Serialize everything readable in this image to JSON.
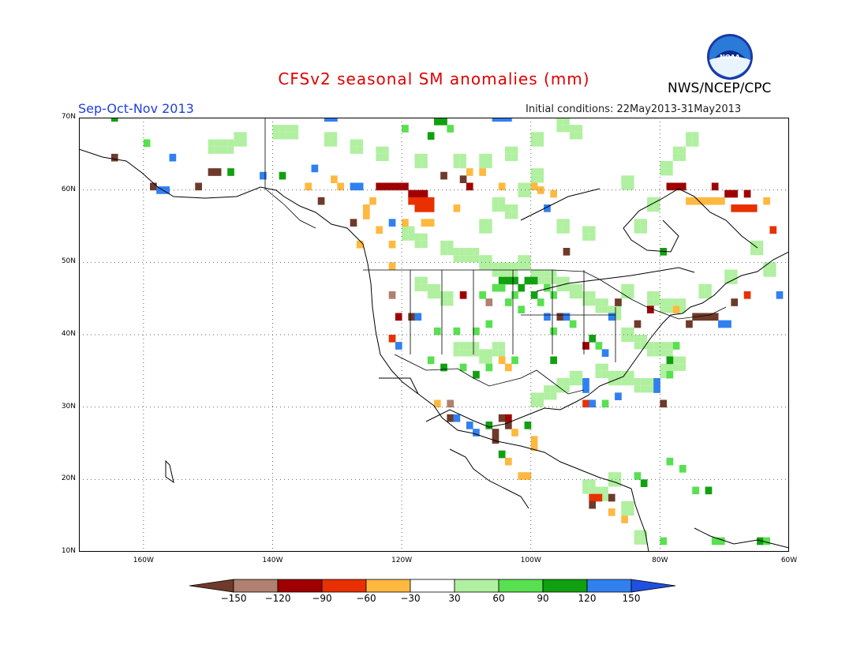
{
  "header": {
    "title": "CFSv2 seasonal SM anomalies (mm)",
    "season": "Sep-Oct-Nov 2013",
    "initial_conditions": "Initial conditions: 22May2013-31May2013",
    "agency": "NWS/NCEP/CPC",
    "logo_text": "NOAA"
  },
  "map": {
    "lat_range": [
      10,
      70
    ],
    "lon_range": [
      -170,
      -60
    ],
    "lat_ticks": [
      "10N",
      "20N",
      "30N",
      "40N",
      "50N",
      "60N",
      "70N"
    ],
    "lon_ticks": [
      "160W",
      "140W",
      "120W",
      "100W",
      "80W",
      "60W"
    ],
    "gridlines": "dotted"
  },
  "legend": {
    "labels": [
      "−150",
      "−120",
      "−90",
      "−60",
      "−30",
      "30",
      "60",
      "90",
      "120",
      "150"
    ],
    "colors": [
      "#6e3a2a",
      "#b08070",
      "#a00000",
      "#e83000",
      "#ffb840",
      "#ffffff",
      "#b0f0a0",
      "#58e050",
      "#10a010",
      "#3080f0",
      "#2050e0"
    ]
  },
  "anomaly_cells": [
    {
      "lon": -132,
      "lat": 69.5,
      "c": "#3080f0"
    },
    {
      "lon": -131,
      "lat": 69.5,
      "c": "#3080f0"
    },
    {
      "lon": -115,
      "lat": 69,
      "c": "#10a010"
    },
    {
      "lon": -114,
      "lat": 69,
      "c": "#10a010"
    },
    {
      "lon": -113,
      "lat": 68,
      "c": "#58e050"
    },
    {
      "lon": -106,
      "lat": 69.5,
      "c": "#3080f0"
    },
    {
      "lon": -105,
      "lat": 69.5,
      "c": "#3080f0"
    },
    {
      "lon": -104,
      "lat": 69.5,
      "c": "#3080f0"
    },
    {
      "lon": -116,
      "lat": 67,
      "c": "#10a010"
    },
    {
      "lon": -120,
      "lat": 68,
      "c": "#58e050"
    },
    {
      "lon": -165,
      "lat": 69.5,
      "c": "#10a010"
    },
    {
      "lon": -160,
      "lat": 66,
      "c": "#58e050"
    },
    {
      "lon": -165,
      "lat": 64,
      "c": "#6e3a2a"
    },
    {
      "lon": -156,
      "lat": 64,
      "c": "#3080f0"
    },
    {
      "lon": -150,
      "lat": 62,
      "c": "#6e3a2a"
    },
    {
      "lon": -149,
      "lat": 62,
      "c": "#6e3a2a"
    },
    {
      "lon": -147,
      "lat": 62,
      "c": "#10a010"
    },
    {
      "lon": -142,
      "lat": 61.5,
      "c": "#3080f0"
    },
    {
      "lon": -139,
      "lat": 61.5,
      "c": "#10a010"
    },
    {
      "lon": -134,
      "lat": 62.5,
      "c": "#3080f0"
    },
    {
      "lon": -159,
      "lat": 60,
      "c": "#6e3a2a"
    },
    {
      "lon": -158,
      "lat": 59.5,
      "c": "#3080f0"
    },
    {
      "lon": -157,
      "lat": 59.5,
      "c": "#3080f0"
    },
    {
      "lon": -152,
      "lat": 60,
      "c": "#6e3a2a"
    },
    {
      "lon": -133,
      "lat": 58,
      "c": "#6e3a2a"
    },
    {
      "lon": -128,
      "lat": 60,
      "c": "#3080f0"
    },
    {
      "lon": -127,
      "lat": 60,
      "c": "#3080f0"
    },
    {
      "lon": -124,
      "lat": 60,
      "c": "#a00000"
    },
    {
      "lon": -123,
      "lat": 60,
      "c": "#a00000"
    },
    {
      "lon": -122,
      "lat": 60,
      "c": "#a00000"
    },
    {
      "lon": -121,
      "lat": 60,
      "c": "#a00000"
    },
    {
      "lon": -120,
      "lat": 60,
      "c": "#a00000"
    },
    {
      "lon": -119,
      "lat": 59,
      "c": "#a00000"
    },
    {
      "lon": -118,
      "lat": 59,
      "c": "#a00000"
    },
    {
      "lon": -117,
      "lat": 59,
      "c": "#a00000"
    },
    {
      "lon": -119,
      "lat": 58,
      "c": "#e83000"
    },
    {
      "lon": -118,
      "lat": 58,
      "c": "#e83000"
    },
    {
      "lon": -117,
      "lat": 58,
      "c": "#e83000"
    },
    {
      "lon": -116,
      "lat": 58,
      "c": "#e83000"
    },
    {
      "lon": -118,
      "lat": 57,
      "c": "#e83000"
    },
    {
      "lon": -117,
      "lat": 57,
      "c": "#e83000"
    },
    {
      "lon": -116,
      "lat": 57,
      "c": "#e83000"
    },
    {
      "lon": -114,
      "lat": 61.5,
      "c": "#6e3a2a"
    },
    {
      "lon": -111,
      "lat": 61,
      "c": "#6e3a2a"
    },
    {
      "lon": -110,
      "lat": 60,
      "c": "#a00000"
    },
    {
      "lon": -125,
      "lat": 58,
      "c": "#ffb840"
    },
    {
      "lon": -126,
      "lat": 57,
      "c": "#ffb840"
    },
    {
      "lon": -122,
      "lat": 55,
      "c": "#3080f0"
    },
    {
      "lon": -120,
      "lat": 55,
      "c": "#ffb840"
    },
    {
      "lon": -128,
      "lat": 55,
      "c": "#6e3a2a"
    },
    {
      "lon": -112,
      "lat": 57,
      "c": "#ffb840"
    },
    {
      "lon": -105,
      "lat": 60,
      "c": "#ffb840"
    },
    {
      "lon": -100,
      "lat": 60,
      "c": "#ffb840"
    },
    {
      "lon": -99,
      "lat": 59.5,
      "c": "#ffb840"
    },
    {
      "lon": -97,
      "lat": 59,
      "c": "#ffb840"
    },
    {
      "lon": -98,
      "lat": 57,
      "c": "#3080f0"
    },
    {
      "lon": -95,
      "lat": 51,
      "c": "#6e3a2a"
    },
    {
      "lon": -80,
      "lat": 51,
      "c": "#10a010"
    },
    {
      "lon": -79,
      "lat": 60,
      "c": "#a00000"
    },
    {
      "lon": -78,
      "lat": 60,
      "c": "#a00000"
    },
    {
      "lon": -77,
      "lat": 60,
      "c": "#a00000"
    },
    {
      "lon": -72,
      "lat": 60,
      "c": "#a00000"
    },
    {
      "lon": -70,
      "lat": 59,
      "c": "#a00000"
    },
    {
      "lon": -69,
      "lat": 59,
      "c": "#a00000"
    },
    {
      "lon": -67,
      "lat": 59,
      "c": "#a00000"
    },
    {
      "lon": -76,
      "lat": 58,
      "c": "#ffb840"
    },
    {
      "lon": -75,
      "lat": 58,
      "c": "#ffb840"
    },
    {
      "lon": -74,
      "lat": 58,
      "c": "#ffb840"
    },
    {
      "lon": -73,
      "lat": 58,
      "c": "#ffb840"
    },
    {
      "lon": -72,
      "lat": 58,
      "c": "#ffb840"
    },
    {
      "lon": -71,
      "lat": 58,
      "c": "#ffb840"
    },
    {
      "lon": -69,
      "lat": 57,
      "c": "#e83000"
    },
    {
      "lon": -68,
      "lat": 57,
      "c": "#e83000"
    },
    {
      "lon": -67,
      "lat": 57,
      "c": "#e83000"
    },
    {
      "lon": -66,
      "lat": 57,
      "c": "#e83000"
    },
    {
      "lon": -64,
      "lat": 58,
      "c": "#ffb840"
    },
    {
      "lon": -63,
      "lat": 54,
      "c": "#e83000"
    },
    {
      "lon": -105,
      "lat": 47,
      "c": "#10a010"
    },
    {
      "lon": -104,
      "lat": 47,
      "c": "#10a010"
    },
    {
      "lon": -103,
      "lat": 47,
      "c": "#10a010"
    },
    {
      "lon": -101,
      "lat": 47,
      "c": "#10a010"
    },
    {
      "lon": -100,
      "lat": 47,
      "c": "#10a010"
    },
    {
      "lon": -106,
      "lat": 46,
      "c": "#58e050"
    },
    {
      "lon": -105,
      "lat": 46,
      "c": "#58e050"
    },
    {
      "lon": -102,
      "lat": 46,
      "c": "#10a010"
    },
    {
      "lon": -98,
      "lat": 46,
      "c": "#58e050"
    },
    {
      "lon": -108,
      "lat": 45,
      "c": "#58e050"
    },
    {
      "lon": -103,
      "lat": 45,
      "c": "#58e050"
    },
    {
      "lon": -100,
      "lat": 45,
      "c": "#10a010"
    },
    {
      "lon": -97,
      "lat": 45,
      "c": "#58e050"
    },
    {
      "lon": -107,
      "lat": 44,
      "c": "#b08070"
    },
    {
      "lon": -104,
      "lat": 44,
      "c": "#58e050"
    },
    {
      "lon": -99,
      "lat": 44,
      "c": "#58e050"
    },
    {
      "lon": -102,
      "lat": 43,
      "c": "#58e050"
    },
    {
      "lon": -98,
      "lat": 42,
      "c": "#3080f0"
    },
    {
      "lon": -96,
      "lat": 42,
      "c": "#6e3a2a"
    },
    {
      "lon": -95,
      "lat": 42,
      "c": "#3080f0"
    },
    {
      "lon": -94,
      "lat": 41,
      "c": "#58e050"
    },
    {
      "lon": -97,
      "lat": 40,
      "c": "#58e050"
    },
    {
      "lon": -107,
      "lat": 41,
      "c": "#58e050"
    },
    {
      "lon": -109,
      "lat": 40,
      "c": "#58e050"
    },
    {
      "lon": -112,
      "lat": 40,
      "c": "#58e050"
    },
    {
      "lon": -115,
      "lat": 40,
      "c": "#58e050"
    },
    {
      "lon": -121,
      "lat": 42,
      "c": "#a00000"
    },
    {
      "lon": -119,
      "lat": 42,
      "c": "#6e3a2a"
    },
    {
      "lon": -118,
      "lat": 42,
      "c": "#3080f0"
    },
    {
      "lon": -122,
      "lat": 39,
      "c": "#e83000"
    },
    {
      "lon": -121,
      "lat": 38,
      "c": "#3080f0"
    },
    {
      "lon": -122,
      "lat": 45,
      "c": "#b08070"
    },
    {
      "lon": -111,
      "lat": 45,
      "c": "#a00000"
    },
    {
      "lon": -116,
      "lat": 36,
      "c": "#58e050"
    },
    {
      "lon": -114,
      "lat": 35,
      "c": "#10a010"
    },
    {
      "lon": -111,
      "lat": 35,
      "c": "#58e050"
    },
    {
      "lon": -109,
      "lat": 34,
      "c": "#10a010"
    },
    {
      "lon": -107,
      "lat": 35,
      "c": "#58e050"
    },
    {
      "lon": -105,
      "lat": 36,
      "c": "#ffb840"
    },
    {
      "lon": -104,
      "lat": 35,
      "c": "#ffb840"
    },
    {
      "lon": -103,
      "lat": 36,
      "c": "#58e050"
    },
    {
      "lon": -97,
      "lat": 36,
      "c": "#10a010"
    },
    {
      "lon": -92,
      "lat": 38,
      "c": "#a00000"
    },
    {
      "lon": -91,
      "lat": 39,
      "c": "#10a010"
    },
    {
      "lon": -90,
      "lat": 38,
      "c": "#58e050"
    },
    {
      "lon": -89,
      "lat": 37,
      "c": "#3080f0"
    },
    {
      "lon": -92,
      "lat": 33,
      "c": "#3080f0"
    },
    {
      "lon": -92,
      "lat": 32,
      "c": "#3080f0"
    },
    {
      "lon": -92,
      "lat": 30,
      "c": "#e83000"
    },
    {
      "lon": -91,
      "lat": 30,
      "c": "#3080f0"
    },
    {
      "lon": -89,
      "lat": 30,
      "c": "#58e050"
    },
    {
      "lon": -87,
      "lat": 31,
      "c": "#3080f0"
    },
    {
      "lon": -81,
      "lat": 32,
      "c": "#3080f0"
    },
    {
      "lon": -81,
      "lat": 33,
      "c": "#3080f0"
    },
    {
      "lon": -80,
      "lat": 30,
      "c": "#6e3a2a"
    },
    {
      "lon": -79,
      "lat": 34,
      "c": "#58e050"
    },
    {
      "lon": -79,
      "lat": 36,
      "c": "#10a010"
    },
    {
      "lon": -78,
      "lat": 38,
      "c": "#58e050"
    },
    {
      "lon": -76,
      "lat": 41,
      "c": "#6e3a2a"
    },
    {
      "lon": -75,
      "lat": 42,
      "c": "#6e3a2a"
    },
    {
      "lon": -74,
      "lat": 42,
      "c": "#6e3a2a"
    },
    {
      "lon": -73,
      "lat": 42,
      "c": "#6e3a2a"
    },
    {
      "lon": -72,
      "lat": 42,
      "c": "#6e3a2a"
    },
    {
      "lon": -71,
      "lat": 41,
      "c": "#3080f0"
    },
    {
      "lon": -70,
      "lat": 41,
      "c": "#3080f0"
    },
    {
      "lon": -78,
      "lat": 43,
      "c": "#ffb840"
    },
    {
      "lon": -82,
      "lat": 43,
      "c": "#a00000"
    },
    {
      "lon": -84,
      "lat": 41,
      "c": "#6e3a2a"
    },
    {
      "lon": -87,
      "lat": 44,
      "c": "#6e3a2a"
    },
    {
      "lon": -88,
      "lat": 42,
      "c": "#3080f0"
    },
    {
      "lon": -69,
      "lat": 44,
      "c": "#6e3a2a"
    },
    {
      "lon": -67,
      "lat": 45,
      "c": "#e83000"
    },
    {
      "lon": -62,
      "lat": 45,
      "c": "#3080f0"
    },
    {
      "lon": -115,
      "lat": 30,
      "c": "#ffb840"
    },
    {
      "lon": -113,
      "lat": 30,
      "c": "#b08070"
    },
    {
      "lon": -113,
      "lat": 28,
      "c": "#6e3a2a"
    },
    {
      "lon": -112,
      "lat": 28,
      "c": "#3080f0"
    },
    {
      "lon": -110,
      "lat": 27,
      "c": "#3080f0"
    },
    {
      "lon": -109,
      "lat": 26,
      "c": "#3080f0"
    },
    {
      "lon": -107,
      "lat": 27,
      "c": "#10a010"
    },
    {
      "lon": -106,
      "lat": 26,
      "c": "#6e3a2a"
    },
    {
      "lon": -105,
      "lat": 28,
      "c": "#6e3a2a"
    },
    {
      "lon": -104,
      "lat": 28,
      "c": "#a00000"
    },
    {
      "lon": -104,
      "lat": 27,
      "c": "#6e3a2a"
    },
    {
      "lon": -103,
      "lat": 26,
      "c": "#ffb840"
    },
    {
      "lon": -106,
      "lat": 25,
      "c": "#6e3a2a"
    },
    {
      "lon": -101,
      "lat": 27,
      "c": "#10a010"
    },
    {
      "lon": -100,
      "lat": 25,
      "c": "#ffb840"
    },
    {
      "lon": -100,
      "lat": 24,
      "c": "#ffb840"
    },
    {
      "lon": -104,
      "lat": 22,
      "c": "#ffb840"
    },
    {
      "lon": -102,
      "lat": 20,
      "c": "#ffb840"
    },
    {
      "lon": -101,
      "lat": 20,
      "c": "#ffb840"
    },
    {
      "lon": -105,
      "lat": 23,
      "c": "#10a010"
    },
    {
      "lon": -91,
      "lat": 17,
      "c": "#e83000"
    },
    {
      "lon": -91,
      "lat": 16,
      "c": "#6e3a2a"
    },
    {
      "lon": -90,
      "lat": 17,
      "c": "#e83000"
    },
    {
      "lon": -88,
      "lat": 17,
      "c": "#6e3a2a"
    },
    {
      "lon": -88,
      "lat": 15,
      "c": "#ffb840"
    },
    {
      "lon": -86,
      "lat": 14,
      "c": "#ffb840"
    },
    {
      "lon": -84,
      "lat": 20,
      "c": "#58e050"
    },
    {
      "lon": -83,
      "lat": 19,
      "c": "#10a010"
    },
    {
      "lon": -75,
      "lat": 18,
      "c": "#58e050"
    },
    {
      "lon": -73,
      "lat": 18,
      "c": "#10a010"
    },
    {
      "lon": -79,
      "lat": 22,
      "c": "#58e050"
    },
    {
      "lon": -77,
      "lat": 21,
      "c": "#58e050"
    },
    {
      "lon": -72,
      "lat": 11,
      "c": "#58e050"
    },
    {
      "lon": -71,
      "lat": 11,
      "c": "#58e050"
    },
    {
      "lon": -65,
      "lat": 11,
      "c": "#10a010"
    },
    {
      "lon": -64,
      "lat": 11,
      "c": "#58e050"
    },
    {
      "lon": -80,
      "lat": 11,
      "c": "#58e050"
    },
    {
      "lon": -117,
      "lat": 55,
      "c": "#ffb840"
    },
    {
      "lon": -116,
      "lat": 55,
      "c": "#ffb840"
    },
    {
      "lon": -110,
      "lat": 62,
      "c": "#ffb840"
    },
    {
      "lon": -108,
      "lat": 62,
      "c": "#ffb840"
    },
    {
      "lon": -131,
      "lat": 61,
      "c": "#ffb840"
    },
    {
      "lon": -130,
      "lat": 60,
      "c": "#ffb840"
    },
    {
      "lon": -135,
      "lat": 60,
      "c": "#ffb840"
    },
    {
      "lon": -126,
      "lat": 56,
      "c": "#ffb840"
    },
    {
      "lon": -124,
      "lat": 54,
      "c": "#ffb840"
    },
    {
      "lon": -127,
      "lat": 52,
      "c": "#ffb840"
    },
    {
      "lon": -122,
      "lat": 52,
      "c": "#ffb840"
    },
    {
      "lon": -122,
      "lat": 49,
      "c": "#ffb840"
    }
  ],
  "light_green_cells": [
    [
      -150,
      66
    ],
    [
      -148,
      66
    ],
    [
      -146,
      67
    ],
    [
      -140,
      68
    ],
    [
      -138,
      68
    ],
    [
      -132,
      67
    ],
    [
      -128,
      66
    ],
    [
      -124,
      65
    ],
    [
      -118,
      64
    ],
    [
      -112,
      64
    ],
    [
      -108,
      64
    ],
    [
      -104,
      65
    ],
    [
      -100,
      67
    ],
    [
      -96,
      69
    ],
    [
      -94,
      68
    ],
    [
      -120,
      54
    ],
    [
      -118,
      53
    ],
    [
      -114,
      52
    ],
    [
      -112,
      51
    ],
    [
      -110,
      51
    ],
    [
      -108,
      50
    ],
    [
      -106,
      49
    ],
    [
      -104,
      49
    ],
    [
      -102,
      50
    ],
    [
      -100,
      48
    ],
    [
      -98,
      48
    ],
    [
      -96,
      47
    ],
    [
      -94,
      46
    ],
    [
      -92,
      45
    ],
    [
      -90,
      44
    ],
    [
      -88,
      43
    ],
    [
      -86,
      40
    ],
    [
      -84,
      39
    ],
    [
      -82,
      38
    ],
    [
      -80,
      38
    ],
    [
      -86,
      34
    ],
    [
      -84,
      33
    ],
    [
      -82,
      33
    ],
    [
      -80,
      35
    ],
    [
      -78,
      36
    ],
    [
      -88,
      34
    ],
    [
      -90,
      35
    ],
    [
      -94,
      34
    ],
    [
      -96,
      33
    ],
    [
      -98,
      32
    ],
    [
      -100,
      31
    ],
    [
      -112,
      38
    ],
    [
      -110,
      38
    ],
    [
      -108,
      37
    ],
    [
      -106,
      38
    ],
    [
      -118,
      47
    ],
    [
      -116,
      46
    ],
    [
      -114,
      45
    ],
    [
      -90,
      18
    ],
    [
      -92,
      19
    ],
    [
      -88,
      20
    ],
    [
      -86,
      16
    ],
    [
      -84,
      12
    ],
    [
      -84,
      55
    ],
    [
      -82,
      58
    ],
    [
      -86,
      61
    ],
    [
      -80,
      63
    ],
    [
      -78,
      65
    ],
    [
      -76,
      67
    ],
    [
      -66,
      52
    ],
    [
      -70,
      48
    ],
    [
      -64,
      49
    ],
    [
      -74,
      46
    ],
    [
      -86,
      46
    ],
    [
      -82,
      45
    ],
    [
      -80,
      44
    ],
    [
      -78,
      44
    ],
    [
      -100,
      62
    ],
    [
      -102,
      60
    ],
    [
      -106,
      58
    ],
    [
      -104,
      57
    ],
    [
      -108,
      55
    ],
    [
      -96,
      55
    ],
    [
      -92,
      54
    ]
  ]
}
